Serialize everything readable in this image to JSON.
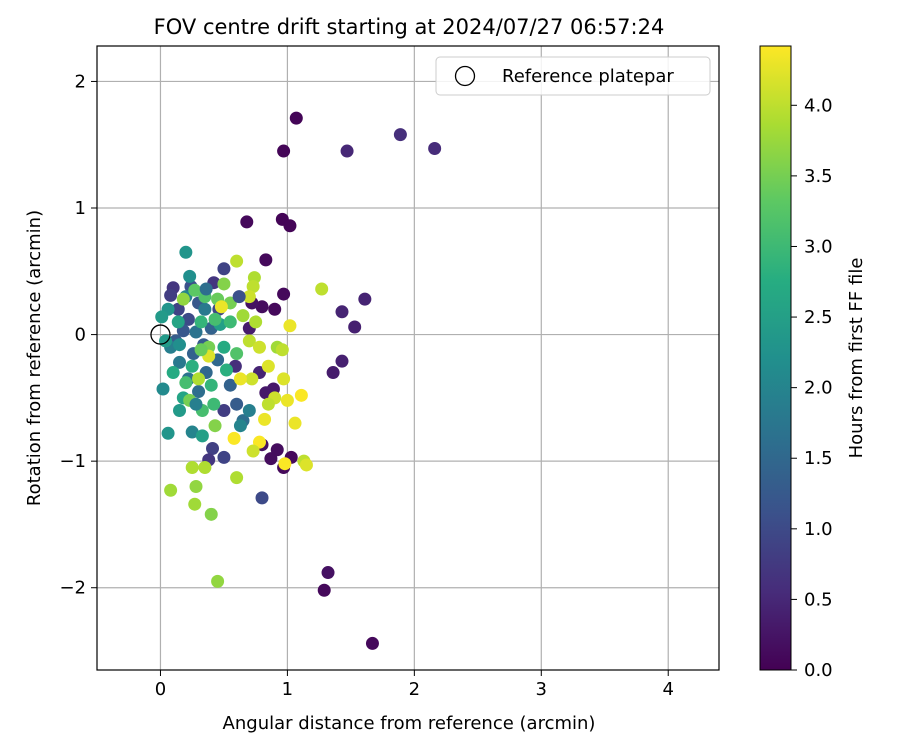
{
  "chart_data": {
    "type": "scatter",
    "title": "FOV centre drift starting at 2024/07/27 06:57:24",
    "xlabel": "Angular distance from reference (arcmin)",
    "ylabel": "Rotation from reference (arcmin)",
    "xlim": [
      -0.5,
      4.4
    ],
    "ylim": [
      -2.65,
      2.28
    ],
    "xticks": [
      0,
      1,
      2,
      3,
      4
    ],
    "yticks": [
      -2,
      -1,
      0,
      1,
      2
    ],
    "grid": true,
    "legend": {
      "placement": "top-right",
      "entries": [
        "Reference platepar"
      ]
    },
    "reference_point": {
      "x": 0,
      "y": 0,
      "label": "Reference platepar"
    },
    "colorbar": {
      "label": "Hours from first FF file",
      "colormap": "viridis",
      "range": [
        0.0,
        4.42
      ],
      "ticks": [
        0.0,
        0.5,
        1.0,
        1.5,
        2.0,
        2.5,
        3.0,
        3.5,
        4.0
      ]
    },
    "points": [
      {
        "x": 1.07,
        "y": 1.71,
        "h": 0.05
      },
      {
        "x": 0.97,
        "y": 1.45,
        "h": 0.05
      },
      {
        "x": 1.47,
        "y": 1.45,
        "h": 0.5
      },
      {
        "x": 1.89,
        "y": 1.58,
        "h": 0.6
      },
      {
        "x": 2.16,
        "y": 1.47,
        "h": 0.55
      },
      {
        "x": 0.68,
        "y": 0.89,
        "h": 0.1
      },
      {
        "x": 0.96,
        "y": 0.91,
        "h": 0.05
      },
      {
        "x": 1.02,
        "y": 0.86,
        "h": 0.05
      },
      {
        "x": 0.83,
        "y": 0.59,
        "h": 0.1
      },
      {
        "x": 0.97,
        "y": 0.32,
        "h": 0.1
      },
      {
        "x": 1.43,
        "y": 0.18,
        "h": 0.45
      },
      {
        "x": 1.61,
        "y": 0.28,
        "h": 0.45
      },
      {
        "x": 1.53,
        "y": 0.06,
        "h": 0.4
      },
      {
        "x": 1.43,
        "y": -0.21,
        "h": 0.4
      },
      {
        "x": 1.36,
        "y": -0.3,
        "h": 0.35
      },
      {
        "x": 1.32,
        "y": -1.88,
        "h": 0.2
      },
      {
        "x": 1.29,
        "y": -2.02,
        "h": 0.1
      },
      {
        "x": 1.67,
        "y": -2.44,
        "h": 0.1
      },
      {
        "x": 0.97,
        "y": -1.05,
        "h": 0.1
      },
      {
        "x": 1.03,
        "y": -0.97,
        "h": 0.1
      },
      {
        "x": 0.87,
        "y": -0.98,
        "h": 0.15
      },
      {
        "x": 0.92,
        "y": -0.91,
        "h": 0.15
      },
      {
        "x": 0.8,
        "y": -0.87,
        "h": 0.2
      },
      {
        "x": 0.9,
        "y": 0.2,
        "h": 0.1
      },
      {
        "x": 0.8,
        "y": 0.22,
        "h": 0.15
      },
      {
        "x": 0.72,
        "y": 0.25,
        "h": 0.2
      },
      {
        "x": 0.83,
        "y": -0.46,
        "h": 0.3
      },
      {
        "x": 0.89,
        "y": -0.43,
        "h": 0.3
      },
      {
        "x": 0.78,
        "y": -0.3,
        "h": 0.45
      },
      {
        "x": 0.7,
        "y": 0.05,
        "h": 0.35
      },
      {
        "x": 0.59,
        "y": -0.25,
        "h": 0.6
      },
      {
        "x": 0.5,
        "y": -0.6,
        "h": 0.8
      },
      {
        "x": 0.41,
        "y": -0.9,
        "h": 0.85
      },
      {
        "x": 0.5,
        "y": -0.97,
        "h": 0.9
      },
      {
        "x": 0.8,
        "y": -1.29,
        "h": 1.0
      },
      {
        "x": 0.38,
        "y": -0.99,
        "h": 0.7
      },
      {
        "x": 0.5,
        "y": 0.52,
        "h": 0.9
      },
      {
        "x": 0.46,
        "y": 0.2,
        "h": 0.95
      },
      {
        "x": 0.42,
        "y": 0.41,
        "h": 0.7
      },
      {
        "x": 0.1,
        "y": 0.37,
        "h": 0.7
      },
      {
        "x": 0.08,
        "y": 0.31,
        "h": 0.8
      },
      {
        "x": 0.14,
        "y": 0.2,
        "h": 0.9
      },
      {
        "x": 0.22,
        "y": 0.12,
        "h": 1.0
      },
      {
        "x": 0.3,
        "y": 0.25,
        "h": 1.2
      },
      {
        "x": 0.24,
        "y": 0.38,
        "h": 1.1
      },
      {
        "x": 0.18,
        "y": 0.03,
        "h": 1.2
      },
      {
        "x": 0.12,
        "y": -0.05,
        "h": 1.3
      },
      {
        "x": 0.26,
        "y": -0.15,
        "h": 1.4
      },
      {
        "x": 0.34,
        "y": -0.08,
        "h": 1.3
      },
      {
        "x": 0.4,
        "y": 0.05,
        "h": 1.4
      },
      {
        "x": 0.36,
        "y": -0.3,
        "h": 1.5
      },
      {
        "x": 0.3,
        "y": -0.45,
        "h": 1.6
      },
      {
        "x": 0.22,
        "y": -0.35,
        "h": 1.7
      },
      {
        "x": 0.15,
        "y": -0.22,
        "h": 1.8
      },
      {
        "x": 0.08,
        "y": -0.1,
        "h": 1.9
      },
      {
        "x": 0.28,
        "y": 0.02,
        "h": 1.7
      },
      {
        "x": 0.45,
        "y": -0.2,
        "h": 1.5
      },
      {
        "x": 0.55,
        "y": -0.4,
        "h": 1.4
      },
      {
        "x": 0.6,
        "y": -0.55,
        "h": 1.3
      },
      {
        "x": 0.65,
        "y": -0.68,
        "h": 1.6
      },
      {
        "x": 0.7,
        "y": -0.6,
        "h": 1.9
      },
      {
        "x": 0.63,
        "y": -0.72,
        "h": 2.0
      },
      {
        "x": 0.35,
        "y": 0.2,
        "h": 1.8
      },
      {
        "x": 0.2,
        "y": 0.3,
        "h": 2.0
      },
      {
        "x": 0.2,
        "y": 0.65,
        "h": 2.3
      },
      {
        "x": 0.23,
        "y": 0.46,
        "h": 2.2
      },
      {
        "x": 0.06,
        "y": 0.2,
        "h": 2.3
      },
      {
        "x": 0.01,
        "y": 0.14,
        "h": 2.4
      },
      {
        "x": 0.04,
        "y": -0.05,
        "h": 2.4
      },
      {
        "x": 0.02,
        "y": -0.43,
        "h": 2.1
      },
      {
        "x": 0.06,
        "y": -0.78,
        "h": 2.3
      },
      {
        "x": 0.25,
        "y": -0.77,
        "h": 2.0
      },
      {
        "x": 0.33,
        "y": -0.8,
        "h": 2.5
      },
      {
        "x": 0.15,
        "y": -0.6,
        "h": 2.4
      },
      {
        "x": 0.18,
        "y": -0.5,
        "h": 2.6
      },
      {
        "x": 0.1,
        "y": -0.3,
        "h": 2.7
      },
      {
        "x": 0.25,
        "y": -0.25,
        "h": 2.8
      },
      {
        "x": 0.4,
        "y": -0.4,
        "h": 2.9
      },
      {
        "x": 0.32,
        "y": 0.1,
        "h": 2.9
      },
      {
        "x": 0.14,
        "y": 0.1,
        "h": 2.6
      },
      {
        "x": 0.47,
        "y": 0.08,
        "h": 2.5
      },
      {
        "x": 0.5,
        "y": -0.1,
        "h": 2.7
      },
      {
        "x": 0.42,
        "y": -0.55,
        "h": 3.0
      },
      {
        "x": 0.33,
        "y": -0.6,
        "h": 3.1
      },
      {
        "x": 0.2,
        "y": -0.38,
        "h": 3.1
      },
      {
        "x": 0.55,
        "y": 0.1,
        "h": 3.0
      },
      {
        "x": 0.6,
        "y": -0.15,
        "h": 3.2
      },
      {
        "x": 0.35,
        "y": 0.3,
        "h": 3.2
      },
      {
        "x": 0.27,
        "y": 0.35,
        "h": 3.3
      },
      {
        "x": 0.45,
        "y": 0.28,
        "h": 3.4
      },
      {
        "x": 0.38,
        "y": -0.1,
        "h": 3.5
      },
      {
        "x": 0.23,
        "y": -0.52,
        "h": 3.5
      },
      {
        "x": 0.43,
        "y": -0.72,
        "h": 3.6
      },
      {
        "x": 0.4,
        "y": -1.42,
        "h": 3.6
      },
      {
        "x": 0.28,
        "y": -1.2,
        "h": 3.7
      },
      {
        "x": 0.27,
        "y": -1.34,
        "h": 3.8
      },
      {
        "x": 0.08,
        "y": -1.23,
        "h": 3.8
      },
      {
        "x": 0.45,
        "y": -1.95,
        "h": 3.7
      },
      {
        "x": 0.6,
        "y": -1.13,
        "h": 3.9
      },
      {
        "x": 0.25,
        "y": -1.05,
        "h": 3.9
      },
      {
        "x": 0.35,
        "y": -1.05,
        "h": 3.9
      },
      {
        "x": 0.5,
        "y": 0.4,
        "h": 3.6
      },
      {
        "x": 0.55,
        "y": 0.25,
        "h": 3.5
      },
      {
        "x": 0.6,
        "y": 0.58,
        "h": 4.0
      },
      {
        "x": 0.74,
        "y": 0.45,
        "h": 3.9
      },
      {
        "x": 0.73,
        "y": 0.38,
        "h": 4.0
      },
      {
        "x": 0.7,
        "y": 0.3,
        "h": 4.1
      },
      {
        "x": 0.65,
        "y": 0.15,
        "h": 3.8
      },
      {
        "x": 0.75,
        "y": 0.1,
        "h": 3.9
      },
      {
        "x": 0.7,
        "y": -0.05,
        "h": 4.0
      },
      {
        "x": 0.78,
        "y": -0.1,
        "h": 4.1
      },
      {
        "x": 0.92,
        "y": -0.1,
        "h": 3.8
      },
      {
        "x": 0.96,
        "y": -0.12,
        "h": 4.0
      },
      {
        "x": 1.02,
        "y": 0.07,
        "h": 4.3
      },
      {
        "x": 0.85,
        "y": -0.25,
        "h": 4.2
      },
      {
        "x": 0.72,
        "y": -0.35,
        "h": 4.1
      },
      {
        "x": 0.63,
        "y": -0.35,
        "h": 4.3
      },
      {
        "x": 0.97,
        "y": -0.35,
        "h": 4.2
      },
      {
        "x": 0.9,
        "y": -0.5,
        "h": 4.1
      },
      {
        "x": 1.0,
        "y": -0.52,
        "h": 4.3
      },
      {
        "x": 1.11,
        "y": -0.48,
        "h": 4.4
      },
      {
        "x": 1.06,
        "y": -0.7,
        "h": 4.3
      },
      {
        "x": 0.82,
        "y": -0.67,
        "h": 4.3
      },
      {
        "x": 0.78,
        "y": -0.85,
        "h": 4.4
      },
      {
        "x": 0.73,
        "y": -0.92,
        "h": 4.1
      },
      {
        "x": 0.58,
        "y": -0.82,
        "h": 4.4
      },
      {
        "x": 1.27,
        "y": 0.36,
        "h": 4.0
      },
      {
        "x": 1.13,
        "y": -1.0,
        "h": 4.0
      },
      {
        "x": 1.15,
        "y": -1.03,
        "h": 4.2
      },
      {
        "x": 0.98,
        "y": -1.02,
        "h": 4.4
      },
      {
        "x": 0.85,
        "y": -0.55,
        "h": 4.0
      },
      {
        "x": 0.48,
        "y": 0.22,
        "h": 4.3
      },
      {
        "x": 0.38,
        "y": -0.17,
        "h": 4.2
      },
      {
        "x": 0.3,
        "y": -0.35,
        "h": 3.9
      },
      {
        "x": 0.18,
        "y": 0.28,
        "h": 3.7
      },
      {
        "x": 0.32,
        "y": -0.12,
        "h": 3.4
      },
      {
        "x": 0.43,
        "y": 0.12,
        "h": 3.1
      },
      {
        "x": 0.52,
        "y": -0.28,
        "h": 2.8
      },
      {
        "x": 0.15,
        "y": -0.08,
        "h": 2.2
      },
      {
        "x": 0.28,
        "y": -0.55,
        "h": 1.9
      },
      {
        "x": 0.36,
        "y": 0.36,
        "h": 1.6
      },
      {
        "x": 0.62,
        "y": 0.3,
        "h": 1.1
      }
    ]
  }
}
